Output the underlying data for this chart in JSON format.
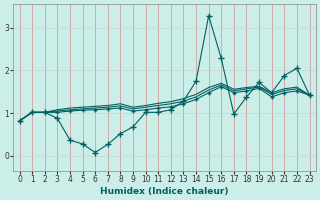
{
  "xlabel": "Humidex (Indice chaleur)",
  "background_color": "#cceee8",
  "grid_color_v": "#d4a0a0",
  "grid_color_h": "#c8d8d4",
  "line_color": "#006060",
  "xlim": [
    -0.5,
    23.5
  ],
  "ylim": [
    -0.35,
    3.55
  ],
  "xticks": [
    0,
    1,
    2,
    3,
    4,
    5,
    6,
    7,
    8,
    9,
    10,
    11,
    12,
    13,
    14,
    15,
    16,
    17,
    18,
    19,
    20,
    21,
    22,
    23
  ],
  "yticks": [
    0,
    1,
    2,
    3
  ],
  "line1_x": [
    0,
    1,
    2,
    3,
    4,
    5,
    6,
    7,
    8,
    9,
    10,
    11,
    12,
    13,
    14,
    15,
    16,
    17,
    18,
    19,
    20,
    21,
    22,
    23
  ],
  "line1_y": [
    0.82,
    1.02,
    1.02,
    0.88,
    0.37,
    0.28,
    0.08,
    0.27,
    0.52,
    0.68,
    1.02,
    1.02,
    1.08,
    1.28,
    1.75,
    3.28,
    2.28,
    0.98,
    1.38,
    1.72,
    1.48,
    1.88,
    2.05,
    1.42
  ],
  "line2_x": [
    0,
    1,
    2,
    3,
    4,
    5,
    6,
    7,
    8,
    9,
    10,
    11,
    12,
    13,
    14,
    15,
    16,
    17,
    18,
    19,
    20,
    21,
    22,
    23
  ],
  "line2_y": [
    0.82,
    1.02,
    1.02,
    1.02,
    1.05,
    1.07,
    1.08,
    1.1,
    1.12,
    1.05,
    1.08,
    1.12,
    1.15,
    1.22,
    1.32,
    1.48,
    1.62,
    1.48,
    1.52,
    1.58,
    1.38,
    1.48,
    1.52,
    1.42
  ],
  "line3_x": [
    0,
    1,
    2,
    3,
    4,
    5,
    6,
    7,
    8,
    9,
    10,
    11,
    12,
    13,
    14,
    15,
    16,
    17,
    18,
    19,
    20,
    21,
    22,
    23
  ],
  "line3_y": [
    0.82,
    1.02,
    1.02,
    1.05,
    1.08,
    1.1,
    1.12,
    1.14,
    1.17,
    1.1,
    1.14,
    1.18,
    1.22,
    1.28,
    1.38,
    1.54,
    1.66,
    1.52,
    1.57,
    1.61,
    1.44,
    1.53,
    1.57,
    1.42
  ],
  "line4_x": [
    0,
    1,
    2,
    3,
    4,
    5,
    6,
    7,
    8,
    9,
    10,
    11,
    12,
    13,
    14,
    15,
    16,
    17,
    18,
    19,
    20,
    21,
    22,
    23
  ],
  "line4_y": [
    0.82,
    1.02,
    1.02,
    1.08,
    1.12,
    1.14,
    1.16,
    1.18,
    1.22,
    1.14,
    1.18,
    1.23,
    1.27,
    1.34,
    1.44,
    1.6,
    1.7,
    1.56,
    1.6,
    1.63,
    1.48,
    1.57,
    1.61,
    1.42
  ]
}
